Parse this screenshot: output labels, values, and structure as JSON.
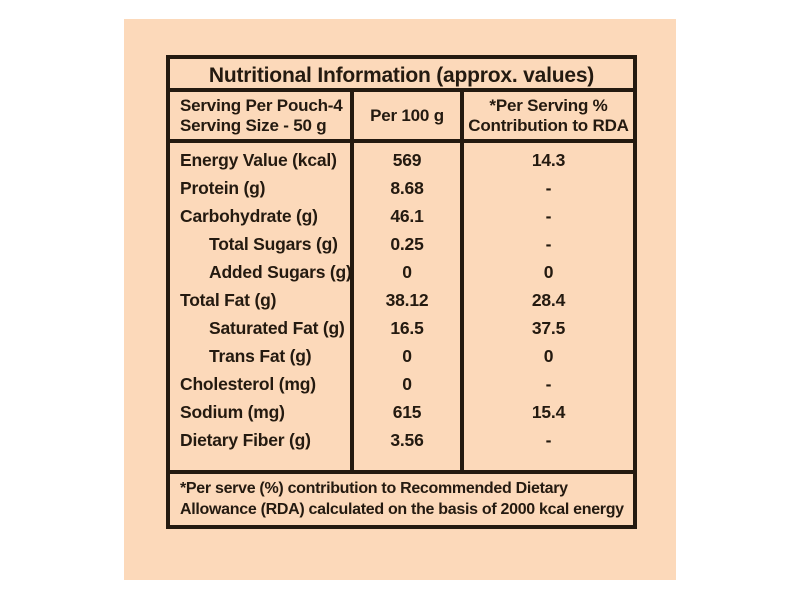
{
  "colors": {
    "page": "#ffffff",
    "panel": "#fcd9ba",
    "ink": "#241a10"
  },
  "title": "Nutritional Information (approx. values)",
  "header": {
    "serving_line1": "Serving Per Pouch-4",
    "serving_line2": "Serving Size - 50 g",
    "per100_label": "Per 100 g",
    "rda_line1": "*Per Serving %",
    "rda_line2": "Contribution to RDA"
  },
  "rows": [
    {
      "label": "Energy Value (kcal)",
      "indent": false,
      "per100": "569",
      "rda": "14.3"
    },
    {
      "label": "Protein (g)",
      "indent": false,
      "per100": "8.68",
      "rda": "-"
    },
    {
      "label": "Carbohydrate (g)",
      "indent": false,
      "per100": "46.1",
      "rda": "-"
    },
    {
      "label": "Total Sugars (g)",
      "indent": true,
      "per100": "0.25",
      "rda": "-"
    },
    {
      "label": "Added Sugars (g)",
      "indent": true,
      "per100": "0",
      "rda": "0"
    },
    {
      "label": "Total Fat (g)",
      "indent": false,
      "per100": "38.12",
      "rda": "28.4"
    },
    {
      "label": "Saturated Fat (g)",
      "indent": true,
      "per100": "16.5",
      "rda": "37.5"
    },
    {
      "label": "Trans Fat (g)",
      "indent": true,
      "per100": "0",
      "rda": "0"
    },
    {
      "label": "Cholesterol (mg)",
      "indent": false,
      "per100": "0",
      "rda": "-"
    },
    {
      "label": "Sodium (mg)",
      "indent": false,
      "per100": "615",
      "rda": "15.4"
    },
    {
      "label": "Dietary Fiber (g)",
      "indent": false,
      "per100": "3.56",
      "rda": "-"
    }
  ],
  "footnote": {
    "line1": "*Per serve (%) contribution to Recommended Dietary",
    "line2": "Allowance (RDA) calculated on the basis of 2000 kcal energy"
  }
}
